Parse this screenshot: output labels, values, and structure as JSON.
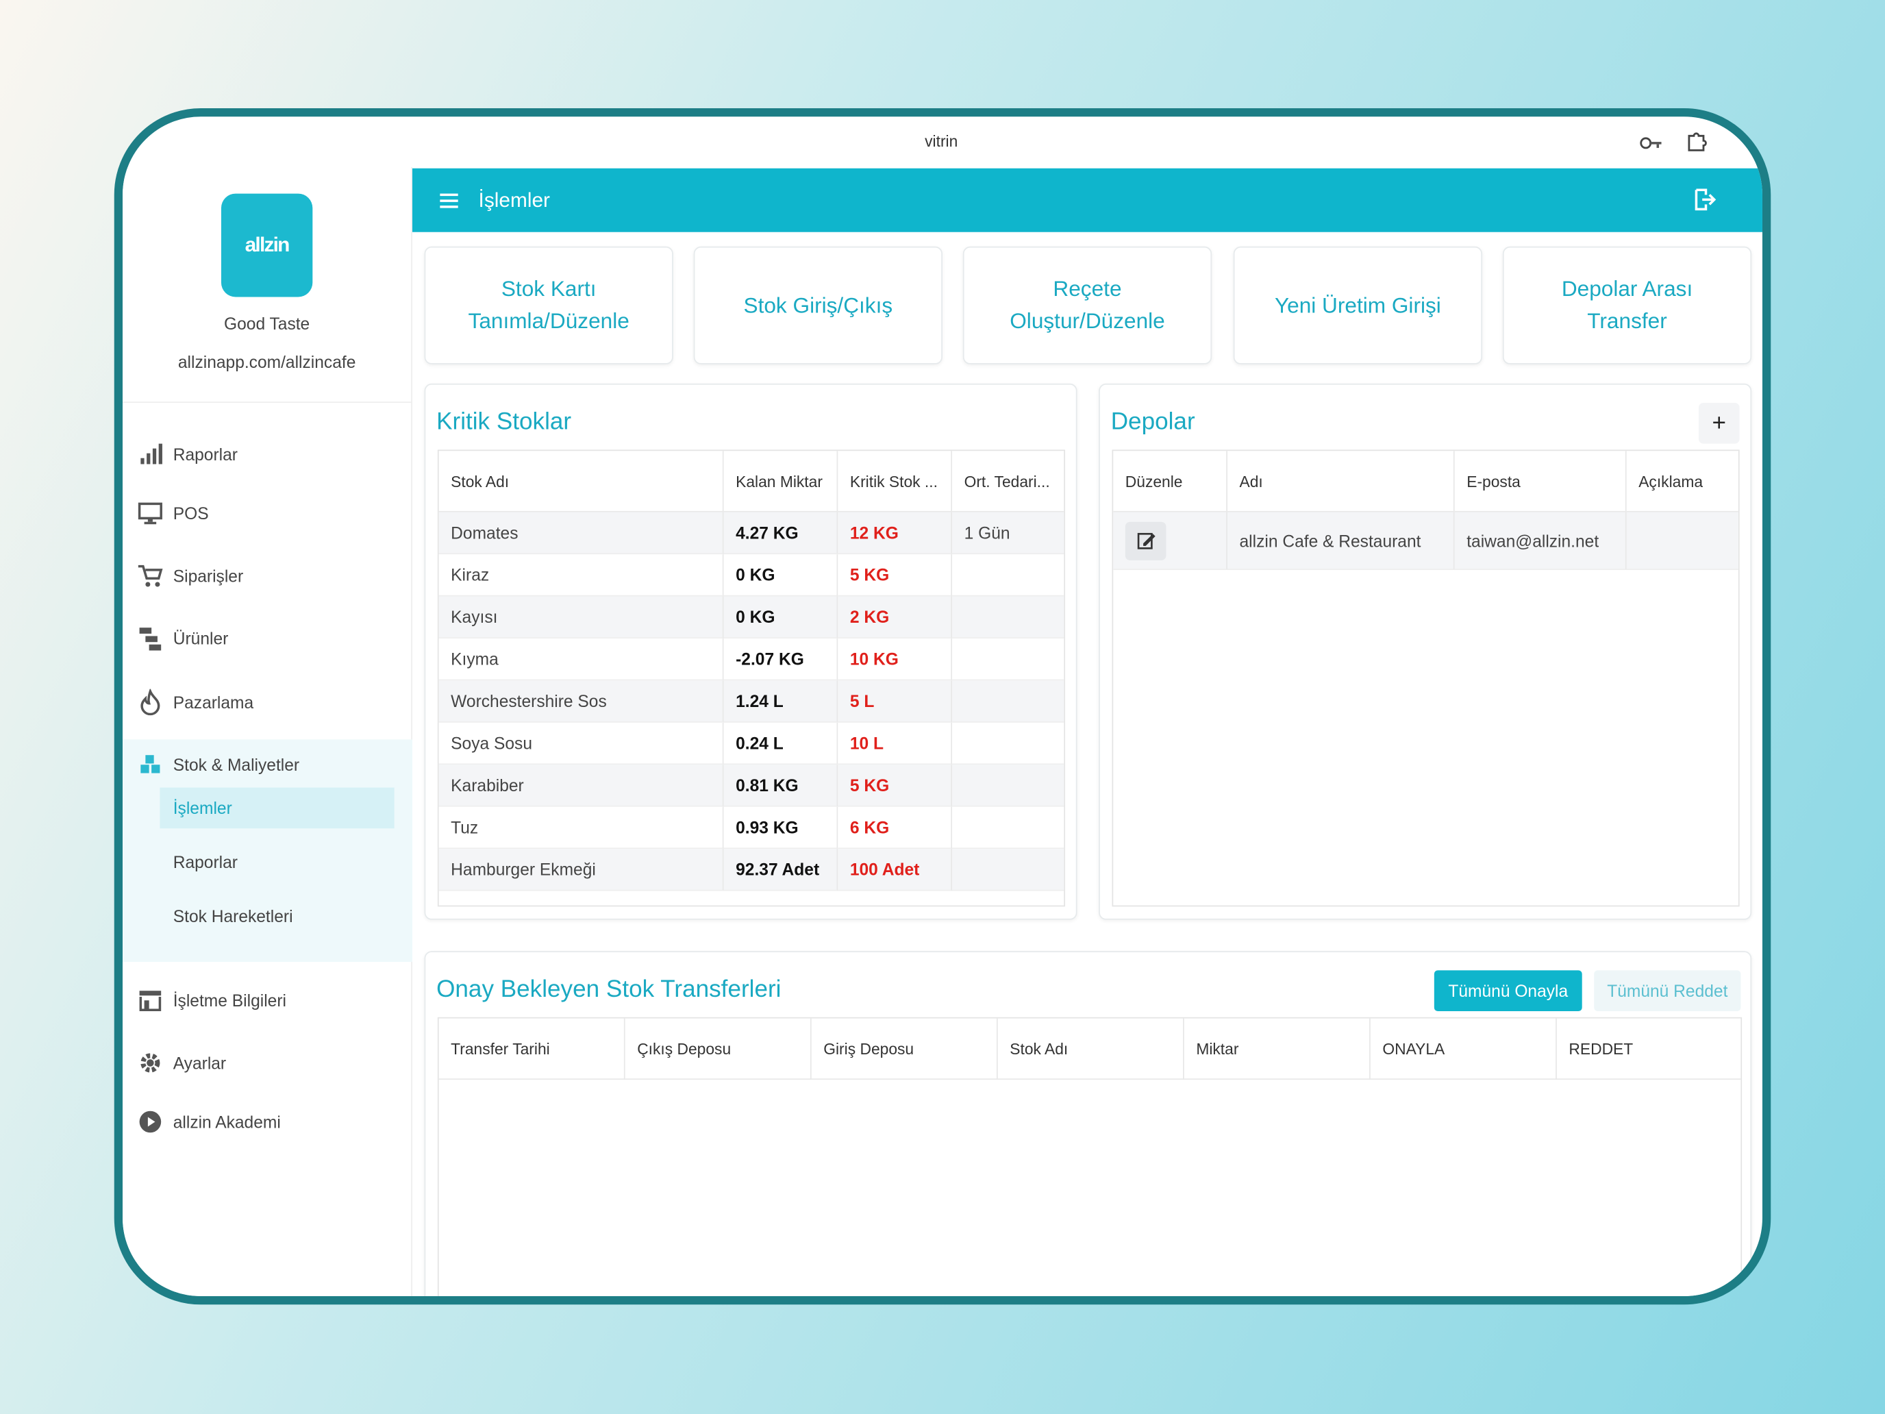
{
  "browser": {
    "title": "vitrin"
  },
  "header": {
    "title": "İşlemler"
  },
  "sidebar": {
    "logo": "allzin",
    "business_name": "Good Taste",
    "url": "allzinapp.com/allzincafe",
    "menu": [
      "Raporlar",
      "POS",
      "Siparişler",
      "Ürünler",
      "Pazarlama",
      "Stok & Maliyetler"
    ],
    "submenu": [
      "İşlemler",
      "Raporlar",
      "Stok Hareketleri"
    ],
    "menu_bottom": [
      "İşletme Bilgileri",
      "Ayarlar",
      "allzin Akademi"
    ]
  },
  "actions": [
    "Stok Kartı Tanımla/Düzenle",
    "Stok Giriş/Çıkış",
    "Reçete Oluştur/Düzenle",
    "Yeni Üretim Girişi",
    "Depolar Arası Transfer"
  ],
  "critical_stocks": {
    "title": "Kritik Stoklar",
    "columns": [
      "Stok Adı",
      "Kalan Miktar",
      "Kritik Stok ...",
      "Ort. Tedari..."
    ],
    "rows": [
      [
        "Domates",
        "4.27 KG",
        "12 KG",
        "1 Gün"
      ],
      [
        "Kiraz",
        "0 KG",
        "5 KG",
        ""
      ],
      [
        "Kayısı",
        "0 KG",
        "2 KG",
        ""
      ],
      [
        "Kıyma",
        "-2.07 KG",
        "10 KG",
        ""
      ],
      [
        "Worchestershire Sos",
        "1.24 L",
        "5 L",
        ""
      ],
      [
        "Soya Sosu",
        "0.24 L",
        "10 L",
        ""
      ],
      [
        "Karabiber",
        "0.81 KG",
        "5 KG",
        ""
      ],
      [
        "Tuz",
        "0.93 KG",
        "6 KG",
        ""
      ],
      [
        "Hamburger Ekmeği",
        "92.37 Adet",
        "100 Adet",
        ""
      ]
    ]
  },
  "warehouses": {
    "title": "Depolar",
    "add_button": "+",
    "columns": [
      "Düzenle",
      "Adı",
      "E-posta",
      "Açıklama"
    ],
    "rows": [
      [
        "",
        "allzin Cafe & Restaurant",
        "taiwan@allzin.net",
        ""
      ]
    ]
  },
  "pending_transfers": {
    "title": "Onay Bekleyen Stok Transferleri",
    "approve_all": "Tümünü Onayla",
    "reject_all": "Tümünü Reddet",
    "columns": [
      "Transfer Tarihi",
      "Çıkış Deposu",
      "Giriş Deposu",
      "Stok Adı",
      "Miktar",
      "ONAYLA",
      "REDDET"
    ]
  }
}
